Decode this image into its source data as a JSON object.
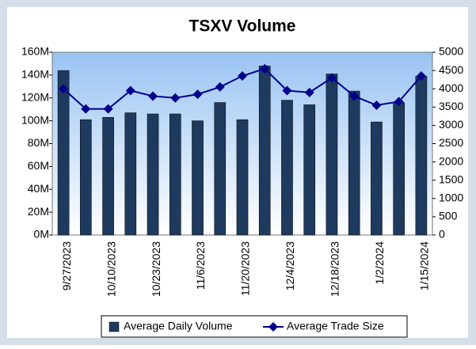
{
  "chart_data": {
    "type": "bar_line",
    "title": "TSXV Volume",
    "categories": [
      "9/27/2023",
      null,
      "10/10/2023",
      null,
      "10/23/2023",
      null,
      "11/6/2023",
      null,
      "11/20/2023",
      null,
      "12/4/2023",
      null,
      "12/18/2023",
      null,
      "1/2/2024",
      null,
      "1/15/2024"
    ],
    "series": [
      {
        "name": "Average Daily Volume",
        "color": "#1f3a5f",
        "values": [
          144,
          101,
          103,
          107,
          106,
          106,
          100,
          116,
          101,
          148,
          118,
          114,
          141,
          126,
          99,
          116,
          139
        ]
      },
      {
        "name": "Average Trade Size",
        "color": "#00008b",
        "axis": "y2",
        "values": [
          4000,
          3450,
          3450,
          3950,
          3800,
          3750,
          3850,
          4050,
          4350,
          4550,
          3950,
          3900,
          4300,
          3800,
          3550,
          3650,
          4350
        ]
      }
    ],
    "ylim": [
      0,
      160
    ],
    "yticks": [
      {
        "value": 0,
        "label": "0M"
      },
      {
        "value": 20,
        "label": "20M"
      },
      {
        "value": 40,
        "label": "40M"
      },
      {
        "value": 60,
        "label": "60M"
      },
      {
        "value": 80,
        "label": "80M"
      },
      {
        "value": 100,
        "label": "100M"
      },
      {
        "value": 120,
        "label": "120M"
      },
      {
        "value": 140,
        "label": "140M"
      },
      {
        "value": 160,
        "label": "160M"
      }
    ],
    "y2lim": [
      0,
      5000
    ],
    "y2ticks": [
      0,
      500,
      1000,
      1500,
      2000,
      2500,
      3000,
      3500,
      4000,
      4500,
      5000
    ],
    "grid": true,
    "legend": "bottom"
  }
}
